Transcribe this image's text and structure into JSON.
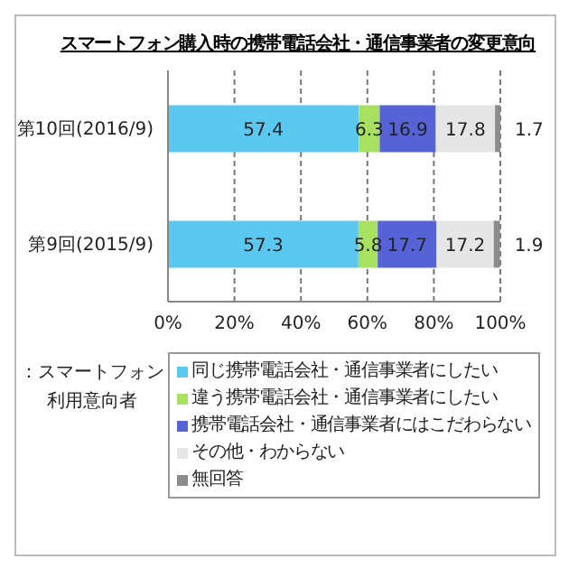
{
  "chart_data": {
    "type": "bar",
    "orientation": "horizontal",
    "stacked": true,
    "title": "スマートフォン購入時の携帯電話会社・通信事業者の変更意向",
    "categories": [
      "第10回(2016/9)",
      "第9回(2015/9)"
    ],
    "series": [
      {
        "name": "同じ携帯電話会社・通信事業者にしたい",
        "color": "#5bc8f0",
        "values": [
          57.4,
          57.3
        ]
      },
      {
        "name": "違う携帯電話会社・通信事業者にしたい",
        "color": "#a8e060",
        "values": [
          6.3,
          5.8
        ]
      },
      {
        "name": "携帯電話会社・通信事業者にはこだわらない",
        "color": "#5563d6",
        "values": [
          16.9,
          17.7
        ]
      },
      {
        "name": "その他・わからない",
        "color": "#e6e6e6",
        "values": [
          17.8,
          17.2
        ]
      },
      {
        "name": "無回答",
        "color": "#8c8c8c",
        "values": [
          1.7,
          1.9
        ]
      }
    ],
    "xlim": [
      0,
      100
    ],
    "xticks": [
      {
        "value": 0,
        "label": "0%"
      },
      {
        "value": 20,
        "label": "20%"
      },
      {
        "value": 40,
        "label": "40%"
      },
      {
        "value": 60,
        "label": "60%"
      },
      {
        "value": 80,
        "label": "80%"
      },
      {
        "value": 100,
        "label": "100%"
      }
    ],
    "grid": "x",
    "data_labels": true,
    "legend": "bottom",
    "annotations": [
      "：スマートフォン利用意向者"
    ]
  }
}
